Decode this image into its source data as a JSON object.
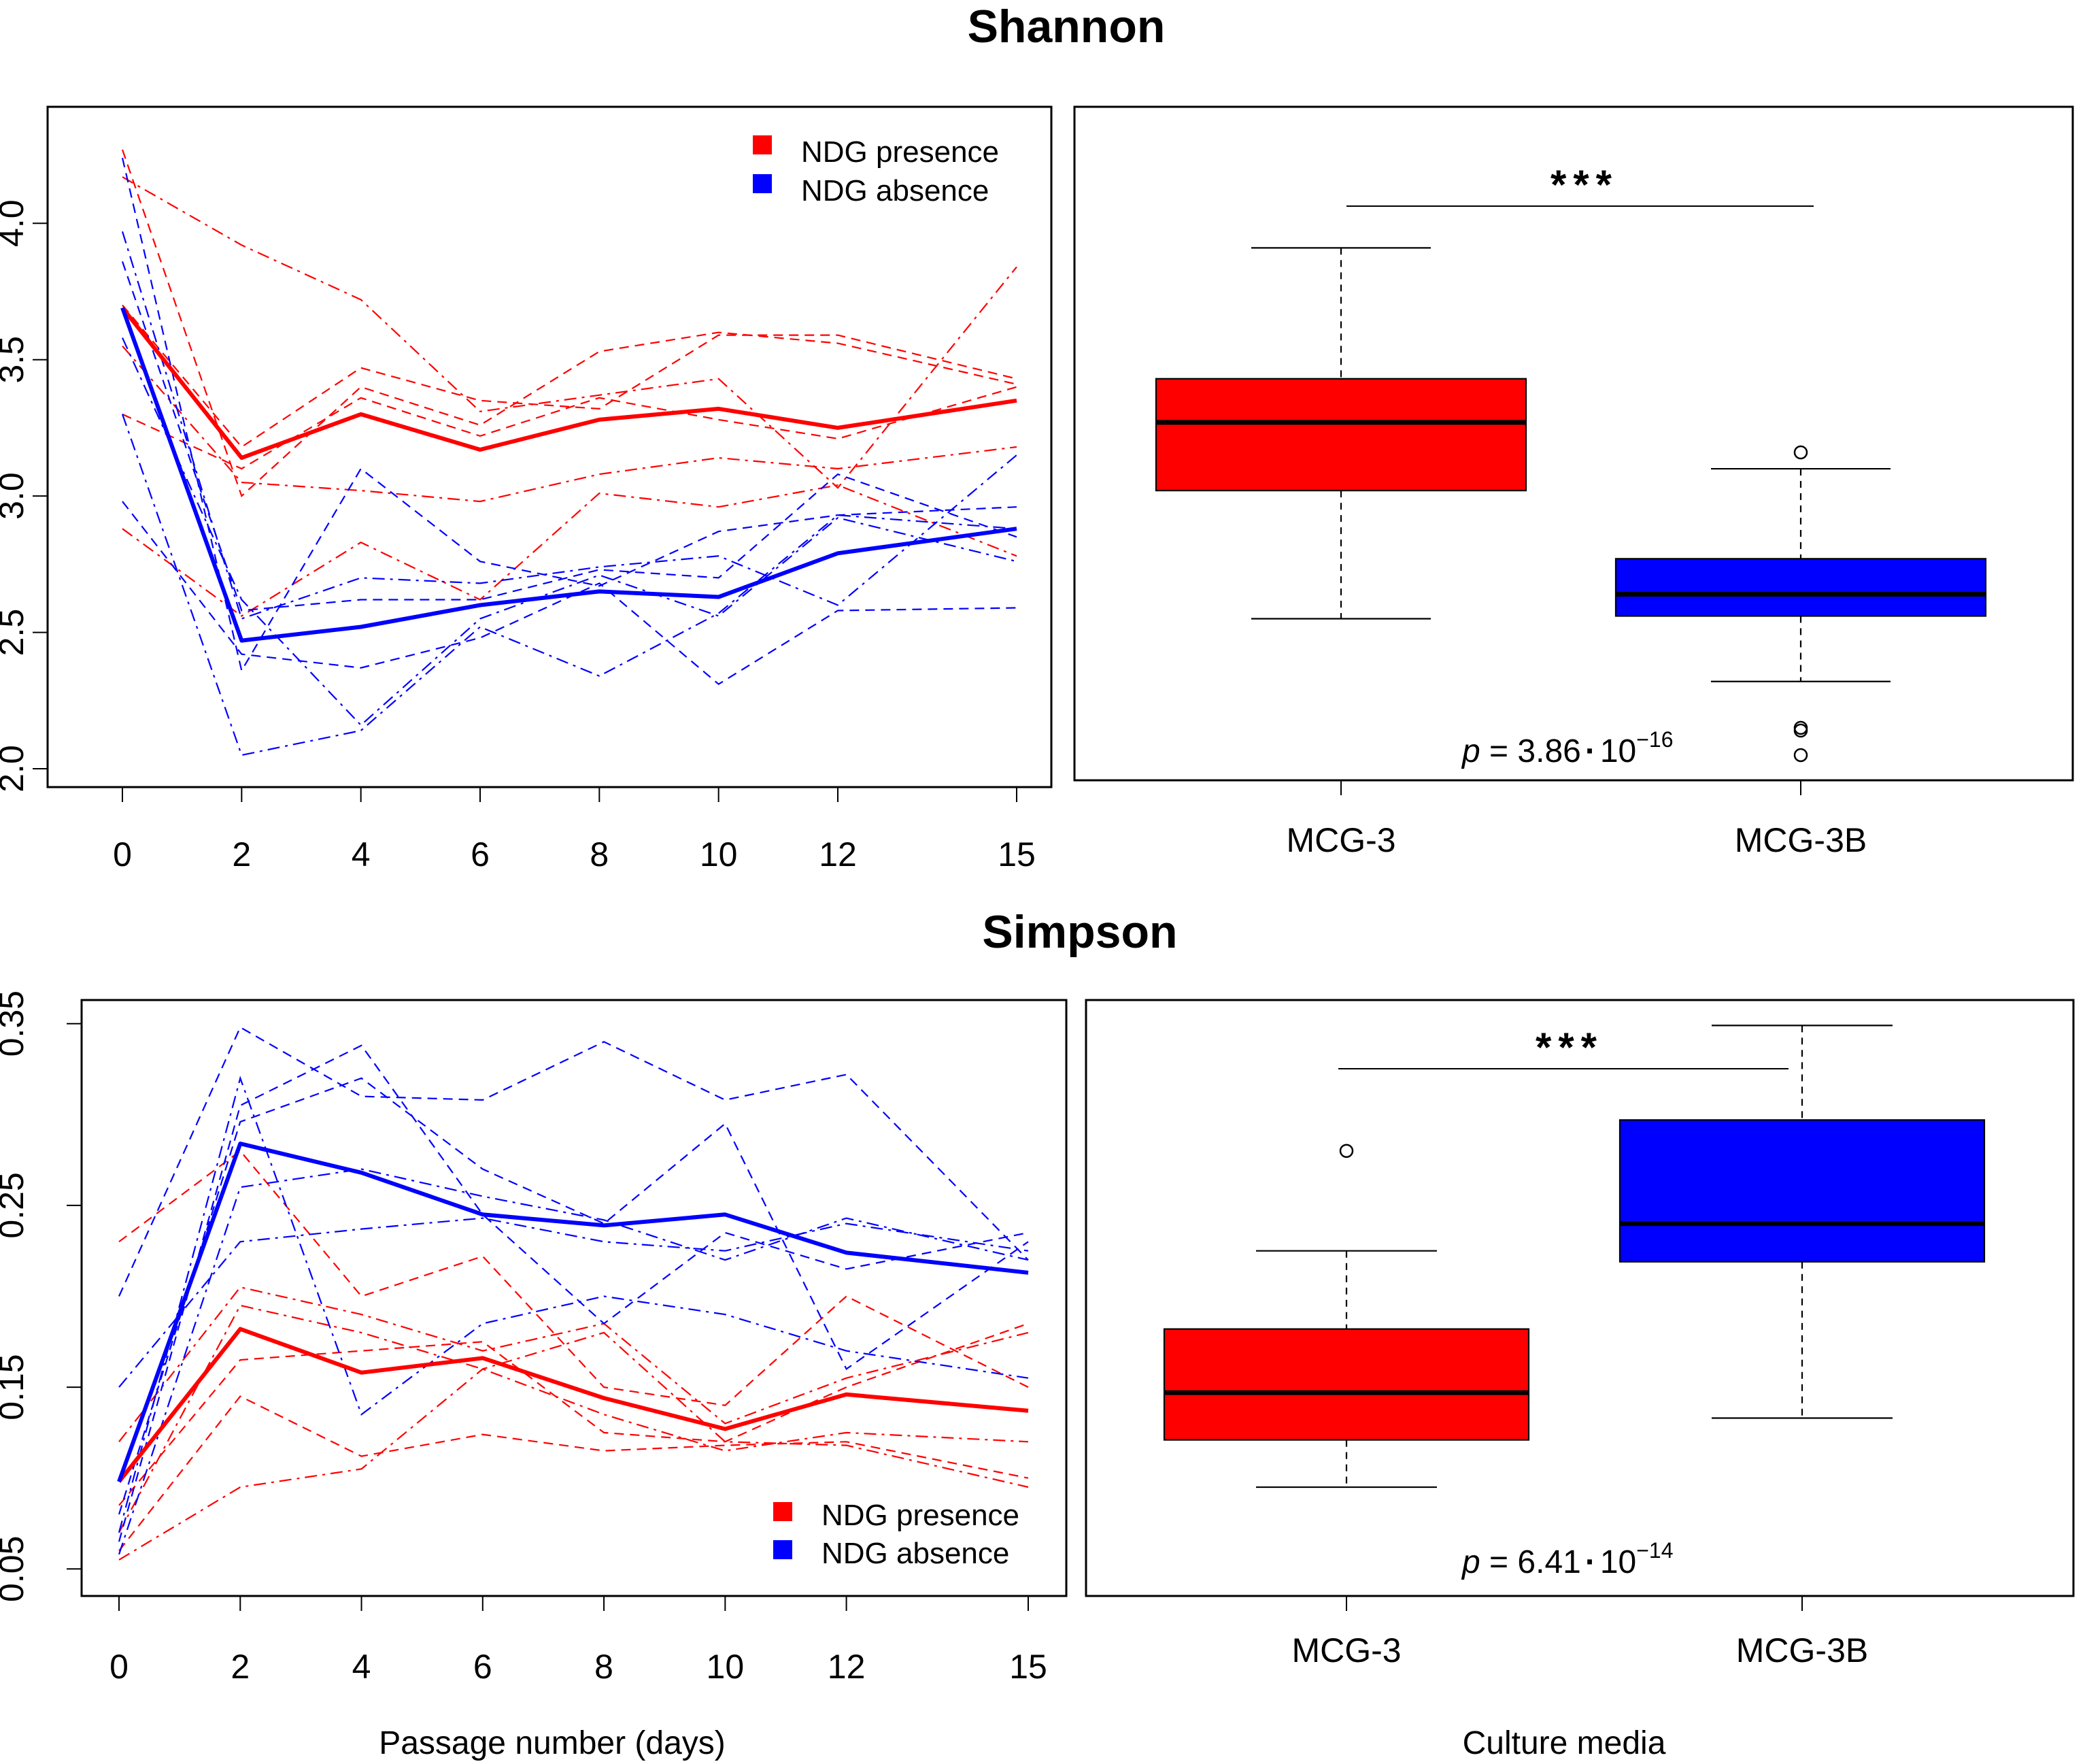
{
  "colors": {
    "present": "#ff0000",
    "absent": "#0000ff",
    "axis": "#000000",
    "background": "#ffffff"
  },
  "chart_data": [
    {
      "id": "shannon-trend",
      "type": "line",
      "title": "Shannon",
      "xlabel": "",
      "ylabel": "",
      "x": [
        0,
        2,
        4,
        6,
        8,
        10,
        12,
        15
      ],
      "x_tick_labels": [
        "0",
        "2",
        "4",
        "6",
        "8",
        "10",
        "12",
        "15"
      ],
      "y_ticks": [
        2.0,
        2.5,
        3.0,
        3.5,
        4.0
      ],
      "y_tick_labels": [
        "2.0",
        "2.5",
        "3.0",
        "3.5",
        "4.0"
      ],
      "ylim": [
        2.0,
        4.3
      ],
      "legend": [
        {
          "label": "NDG presence",
          "color": "#ff0000"
        },
        {
          "label": "NDG absence",
          "color": "#0000ff"
        }
      ],
      "legend_position": "top-right",
      "mean_series": [
        {
          "name": "NDG presence",
          "color": "#ff0000",
          "values": [
            3.69,
            3.14,
            3.3,
            3.17,
            3.28,
            3.32,
            3.25,
            3.35
          ]
        },
        {
          "name": "NDG absence",
          "color": "#0000ff",
          "values": [
            3.69,
            2.47,
            2.52,
            2.6,
            2.65,
            2.63,
            2.79,
            2.88
          ]
        }
      ],
      "replicate_series": [
        {
          "group": "NDG presence",
          "color": "#ff0000",
          "values": [
            4.27,
            3.0,
            3.4,
            3.26,
            3.53,
            3.6,
            3.56,
            3.41
          ]
        },
        {
          "group": "NDG presence",
          "color": "#ff0000",
          "values": [
            4.17,
            3.92,
            3.72,
            3.31,
            3.37,
            3.43,
            3.03,
            3.84
          ]
        },
        {
          "group": "NDG presence",
          "color": "#ff0000",
          "values": [
            3.7,
            3.18,
            3.47,
            3.35,
            3.32,
            3.59,
            3.59,
            3.43
          ]
        },
        {
          "group": "NDG presence",
          "color": "#ff0000",
          "values": [
            3.55,
            3.05,
            3.02,
            2.98,
            3.08,
            3.14,
            3.1,
            3.18
          ]
        },
        {
          "group": "NDG presence",
          "color": "#ff0000",
          "values": [
            3.3,
            3.1,
            3.36,
            3.22,
            3.36,
            3.28,
            3.21,
            3.4
          ]
        },
        {
          "group": "NDG presence",
          "color": "#ff0000",
          "values": [
            2.88,
            2.56,
            2.83,
            2.62,
            3.01,
            2.96,
            3.04,
            2.78
          ]
        },
        {
          "group": "NDG absence",
          "color": "#0000ff",
          "values": [
            4.24,
            2.36,
            3.1,
            2.76,
            2.67,
            2.87,
            2.93,
            2.96
          ]
        },
        {
          "group": "NDG absence",
          "color": "#0000ff",
          "values": [
            3.97,
            2.55,
            2.7,
            2.68,
            2.74,
            2.78,
            2.6,
            3.15
          ]
        },
        {
          "group": "NDG absence",
          "color": "#0000ff",
          "values": [
            3.86,
            2.58,
            2.62,
            2.62,
            2.73,
            2.7,
            3.08,
            2.85
          ]
        },
        {
          "group": "NDG absence",
          "color": "#0000ff",
          "values": [
            3.3,
            2.05,
            2.14,
            2.52,
            2.34,
            2.57,
            2.93,
            2.88
          ]
        },
        {
          "group": "NDG absence",
          "color": "#0000ff",
          "values": [
            2.98,
            2.42,
            2.37,
            2.48,
            2.68,
            2.31,
            2.58,
            2.59
          ]
        },
        {
          "group": "NDG absence",
          "color": "#0000ff",
          "values": [
            3.58,
            2.62,
            2.16,
            2.55,
            2.71,
            2.56,
            2.92,
            2.76
          ]
        }
      ]
    },
    {
      "id": "shannon-box",
      "type": "box",
      "title": "Shannon",
      "xlabel": "",
      "ylabel": "",
      "ylim": [
        2.0,
        4.3
      ],
      "categories": [
        "MCG-3",
        "MCG-3B"
      ],
      "boxes": [
        {
          "name": "MCG-3",
          "color": "#ff0000",
          "whisker_low": 2.55,
          "q1": 3.02,
          "median": 3.27,
          "q3": 3.43,
          "whisker_high": 3.91,
          "outliers": []
        },
        {
          "name": "MCG-3B",
          "color": "#0000ff",
          "whisker_low": 2.32,
          "q1": 2.56,
          "median": 2.64,
          "q3": 2.77,
          "whisker_high": 3.1,
          "outliers": [
            3.16,
            2.15,
            2.14,
            2.05
          ]
        }
      ],
      "significance": "***",
      "p_value": {
        "prefix": "p",
        "mantissa": " = 3.86",
        "dot": "·",
        "base": "10",
        "exponent": "−16"
      }
    },
    {
      "id": "simpson-trend",
      "type": "line",
      "title": "Simpson",
      "xlabel": "Passage number (days)",
      "ylabel": "",
      "x": [
        0,
        2,
        4,
        6,
        8,
        10,
        12,
        15
      ],
      "x_tick_labels": [
        "0",
        "2",
        "4",
        "6",
        "8",
        "10",
        "12",
        "15"
      ],
      "y_ticks": [
        0.05,
        0.15,
        0.25,
        0.35
      ],
      "y_tick_labels": [
        "0.05",
        "0.15",
        "0.25",
        "0.35"
      ],
      "ylim": [
        0.04,
        0.36
      ],
      "legend": [
        {
          "label": "NDG presence",
          "color": "#ff0000"
        },
        {
          "label": "NDG absence",
          "color": "#0000ff"
        }
      ],
      "legend_position": "bottom-right",
      "mean_series": [
        {
          "name": "NDG presence",
          "color": "#ff0000",
          "values": [
            0.098,
            0.182,
            0.158,
            0.166,
            0.144,
            0.127,
            0.146,
            0.137
          ]
        },
        {
          "name": "NDG absence",
          "color": "#0000ff",
          "values": [
            0.098,
            0.284,
            0.268,
            0.245,
            0.239,
            0.245,
            0.224,
            0.213
          ]
        }
      ],
      "replicate_series": [
        {
          "group": "NDG presence",
          "color": "#ff0000",
          "values": [
            0.23,
            0.28,
            0.2,
            0.222,
            0.15,
            0.14,
            0.2,
            0.15
          ]
        },
        {
          "group": "NDG presence",
          "color": "#ff0000",
          "values": [
            0.12,
            0.205,
            0.19,
            0.17,
            0.185,
            0.13,
            0.155,
            0.18
          ]
        },
        {
          "group": "NDG presence",
          "color": "#ff0000",
          "values": [
            0.085,
            0.165,
            0.17,
            0.175,
            0.125,
            0.12,
            0.15,
            0.185
          ]
        },
        {
          "group": "NDG presence",
          "color": "#ff0000",
          "values": [
            0.07,
            0.195,
            0.18,
            0.16,
            0.135,
            0.115,
            0.125,
            0.12
          ]
        },
        {
          "group": "NDG presence",
          "color": "#ff0000",
          "values": [
            0.06,
            0.145,
            0.112,
            0.124,
            0.115,
            0.118,
            0.12,
            0.1
          ]
        },
        {
          "group": "NDG presence",
          "color": "#ff0000",
          "values": [
            0.055,
            0.095,
            0.105,
            0.16,
            0.18,
            0.12,
            0.118,
            0.095
          ]
        },
        {
          "group": "NDG absence",
          "color": "#0000ff",
          "values": [
            0.2,
            0.348,
            0.31,
            0.308,
            0.34,
            0.308,
            0.322,
            0.22
          ]
        },
        {
          "group": "NDG absence",
          "color": "#0000ff",
          "values": [
            0.15,
            0.23,
            0.237,
            0.243,
            0.23,
            0.225,
            0.24,
            0.225
          ]
        },
        {
          "group": "NDG absence",
          "color": "#0000ff",
          "values": [
            0.08,
            0.296,
            0.32,
            0.27,
            0.24,
            0.295,
            0.16,
            0.23
          ]
        },
        {
          "group": "NDG absence",
          "color": "#0000ff",
          "values": [
            0.07,
            0.32,
            0.135,
            0.185,
            0.2,
            0.19,
            0.17,
            0.155
          ]
        },
        {
          "group": "NDG absence",
          "color": "#0000ff",
          "values": [
            0.065,
            0.305,
            0.338,
            0.245,
            0.185,
            0.235,
            0.215,
            0.235
          ]
        },
        {
          "group": "NDG absence",
          "color": "#0000ff",
          "values": [
            0.058,
            0.26,
            0.27,
            0.255,
            0.242,
            0.22,
            0.243,
            0.22
          ]
        }
      ]
    },
    {
      "id": "simpson-box",
      "type": "box",
      "title": "Simpson",
      "xlabel": "Culture media",
      "ylabel": "",
      "ylim": [
        0.04,
        0.36
      ],
      "categories": [
        "MCG-3",
        "MCG-3B"
      ],
      "boxes": [
        {
          "name": "MCG-3",
          "color": "#ff0000",
          "whisker_low": 0.095,
          "q1": 0.121,
          "median": 0.147,
          "q3": 0.182,
          "whisker_high": 0.225,
          "outliers": [
            0.28
          ]
        },
        {
          "name": "MCG-3B",
          "color": "#0000ff",
          "whisker_low": 0.133,
          "q1": 0.219,
          "median": 0.24,
          "q3": 0.297,
          "whisker_high": 0.349,
          "outliers": []
        }
      ],
      "significance": "***",
      "p_value": {
        "prefix": "p",
        "mantissa": " = 6.41",
        "dot": "·",
        "base": "10",
        "exponent": "−14"
      }
    }
  ]
}
